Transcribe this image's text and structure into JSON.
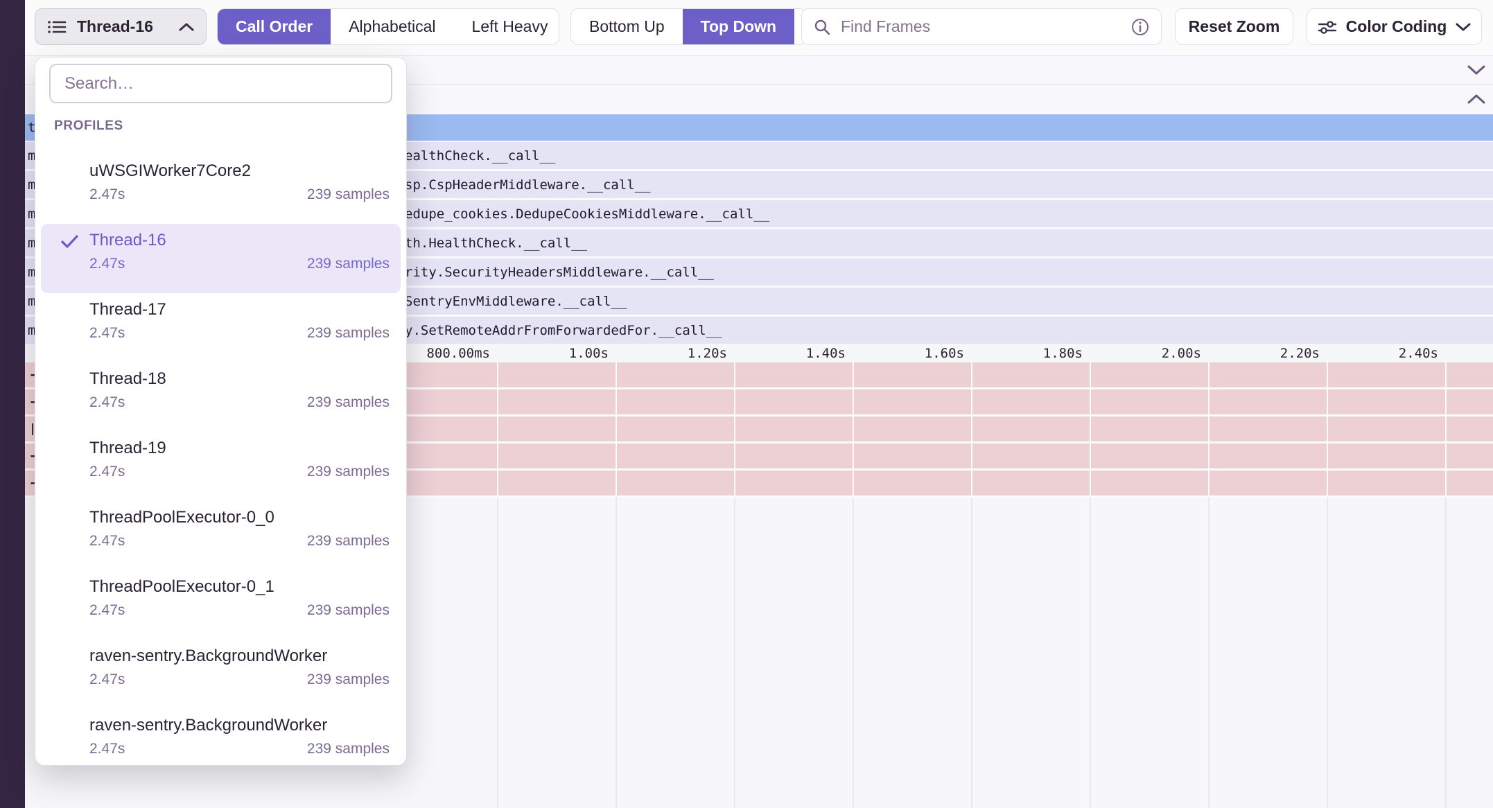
{
  "toolbar": {
    "thread_selector": {
      "label": "Thread-16"
    },
    "sorting": [
      {
        "label": "Call Order",
        "active": true
      },
      {
        "label": "Alphabetical",
        "active": false
      },
      {
        "label": "Left Heavy",
        "active": false
      }
    ],
    "direction": [
      {
        "label": "Bottom Up",
        "active": false
      },
      {
        "label": "Top Down",
        "active": true
      }
    ],
    "search": {
      "placeholder": "Find Frames"
    },
    "reset_zoom_label": "Reset Zoom",
    "color_coding_label": "Color Coding"
  },
  "profiles_dropdown": {
    "search_placeholder": "Search…",
    "section_label": "PROFILES",
    "items": [
      {
        "name": "uWSGIWorker7Core2",
        "duration": "2.47s",
        "samples": "239 samples",
        "selected": false
      },
      {
        "name": "Thread-16",
        "duration": "2.47s",
        "samples": "239 samples",
        "selected": true
      },
      {
        "name": "Thread-17",
        "duration": "2.47s",
        "samples": "239 samples",
        "selected": false
      },
      {
        "name": "Thread-18",
        "duration": "2.47s",
        "samples": "239 samples",
        "selected": false
      },
      {
        "name": "Thread-19",
        "duration": "2.47s",
        "samples": "239 samples",
        "selected": false
      },
      {
        "name": "ThreadPoolExecutor-0_0",
        "duration": "2.47s",
        "samples": "239 samples",
        "selected": false
      },
      {
        "name": "ThreadPoolExecutor-0_1",
        "duration": "2.47s",
        "samples": "239 samples",
        "selected": false
      },
      {
        "name": "raven-sentry.BackgroundWorker",
        "duration": "2.47s",
        "samples": "239 samples",
        "selected": false
      },
      {
        "name": "raven-sentry.BackgroundWorker",
        "duration": "2.47s",
        "samples": "239 samples",
        "selected": false
      }
    ]
  },
  "flamegraph": {
    "selected_row_clip": "t",
    "rows": [
      {
        "clip": "m",
        "text": "ealthCheck.__call__"
      },
      {
        "clip": "m",
        "text": "sp.CspHeaderMiddleware.__call__"
      },
      {
        "clip": "m",
        "text": "edupe_cookies.DedupeCookiesMiddleware.__call__"
      },
      {
        "clip": "m",
        "text": "th.HealthCheck.__call__"
      },
      {
        "clip": "m",
        "text": "rity.SecurityHeadersMiddleware.__call__"
      },
      {
        "clip": "m",
        "text": "SentryEnvMiddleware.__call__"
      },
      {
        "clip": "m",
        "text": "y.SetRemoteAddrFromForwardedFor.__call__"
      }
    ],
    "axis_ticks": [
      "800.00ms",
      "1.00s",
      "1.20s",
      "1.40s",
      "1.60s",
      "1.80s",
      "2.00s",
      "2.20s",
      "2.40s"
    ],
    "pink_row_clips": [
      "-",
      "-",
      "|",
      "-",
      "-"
    ]
  },
  "colors": {
    "accent": "#6c5fc7",
    "selected_frame": "#9cbaf0",
    "frame_row": "#e4e4f4",
    "span_row": "#ecd0d4",
    "sidebar": "#332642"
  }
}
